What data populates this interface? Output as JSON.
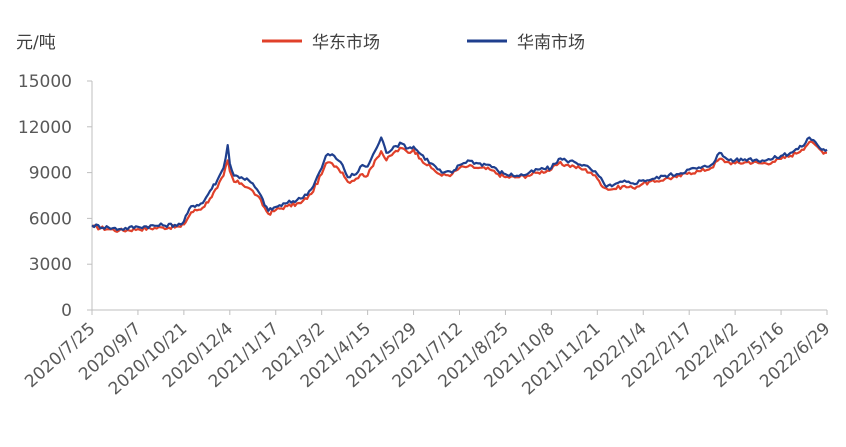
{
  "chart_data": {
    "type": "line",
    "unit_label": "元/吨",
    "ylim": [
      0,
      15000
    ],
    "yticks": [
      0,
      3000,
      6000,
      9000,
      12000,
      15000
    ],
    "x_start": "2020-07-25",
    "x_end": "2022-06-29",
    "xticks": [
      "2020/7/25",
      "2020/9/7",
      "2020/10/21",
      "2020/12/4",
      "2021/1/17",
      "2021/3/2",
      "2021/4/15",
      "2021/5/29",
      "2021/7/12",
      "2021/8/25",
      "2021/10/8",
      "2021/11/21",
      "2022/1/4",
      "2022/2/17",
      "2022/4/2",
      "2022/5/16",
      "2022/6/29"
    ],
    "legend_position": "top",
    "grid": false,
    "series": [
      {
        "name": "华东市场",
        "color": "#e0402a",
        "points": [
          [
            "2020-07-25",
            5450
          ],
          [
            "2020-08-10",
            5300
          ],
          [
            "2020-08-20",
            5200
          ],
          [
            "2020-09-07",
            5300
          ],
          [
            "2020-10-01",
            5400
          ],
          [
            "2020-10-18",
            5450
          ],
          [
            "2020-10-21",
            5600
          ],
          [
            "2020-10-28",
            6400
          ],
          [
            "2020-11-08",
            6700
          ],
          [
            "2020-11-15",
            7300
          ],
          [
            "2020-11-22",
            8000
          ],
          [
            "2020-11-28",
            8800
          ],
          [
            "2020-12-02",
            9800
          ],
          [
            "2020-12-04",
            9100
          ],
          [
            "2020-12-08",
            8400
          ],
          [
            "2020-12-15",
            8300
          ],
          [
            "2020-12-22",
            8000
          ],
          [
            "2020-12-30",
            7500
          ],
          [
            "2021-01-10",
            6300
          ],
          [
            "2021-01-17",
            6550
          ],
          [
            "2021-01-28",
            6800
          ],
          [
            "2021-02-10",
            7000
          ],
          [
            "2021-02-20",
            7600
          ],
          [
            "2021-03-02",
            8900
          ],
          [
            "2021-03-06",
            9600
          ],
          [
            "2021-03-12",
            9600
          ],
          [
            "2021-03-16",
            9400
          ],
          [
            "2021-03-22",
            9000
          ],
          [
            "2021-03-27",
            8400
          ],
          [
            "2021-04-04",
            8600
          ],
          [
            "2021-04-10",
            8900
          ],
          [
            "2021-04-15",
            8800
          ],
          [
            "2021-04-22",
            9800
          ],
          [
            "2021-04-28",
            10400
          ],
          [
            "2021-05-03",
            9800
          ],
          [
            "2021-05-10",
            10300
          ],
          [
            "2021-05-18",
            10600
          ],
          [
            "2021-05-24",
            10300
          ],
          [
            "2021-05-29",
            10500
          ],
          [
            "2021-06-05",
            9900
          ],
          [
            "2021-06-15",
            9300
          ],
          [
            "2021-06-25",
            8800
          ],
          [
            "2021-07-05",
            8900
          ],
          [
            "2021-07-12",
            9300
          ],
          [
            "2021-07-20",
            9400
          ],
          [
            "2021-07-30",
            9300
          ],
          [
            "2021-08-10",
            9200
          ],
          [
            "2021-08-18",
            8900
          ],
          [
            "2021-08-25",
            8700
          ],
          [
            "2021-09-05",
            8700
          ],
          [
            "2021-09-15",
            8800
          ],
          [
            "2021-09-25",
            9000
          ],
          [
            "2021-10-08",
            9200
          ],
          [
            "2021-10-15",
            9600
          ],
          [
            "2021-10-22",
            9500
          ],
          [
            "2021-10-30",
            9400
          ],
          [
            "2021-11-08",
            9200
          ],
          [
            "2021-11-15",
            9000
          ],
          [
            "2021-11-21",
            8600
          ],
          [
            "2021-11-28",
            8000
          ],
          [
            "2021-12-05",
            7900
          ],
          [
            "2021-12-15",
            8100
          ],
          [
            "2021-12-25",
            8000
          ],
          [
            "2022-01-04",
            8300
          ],
          [
            "2022-01-15",
            8400
          ],
          [
            "2022-01-25",
            8600
          ],
          [
            "2022-02-05",
            8700
          ],
          [
            "2022-02-17",
            9000
          ],
          [
            "2022-02-28",
            9100
          ],
          [
            "2022-03-10",
            9300
          ],
          [
            "2022-03-18",
            9900
          ],
          [
            "2022-03-25",
            9700
          ],
          [
            "2022-04-02",
            9600
          ],
          [
            "2022-04-15",
            9700
          ],
          [
            "2022-04-28",
            9600
          ],
          [
            "2022-05-08",
            9700
          ],
          [
            "2022-05-16",
            9900
          ],
          [
            "2022-05-25",
            10100
          ],
          [
            "2022-06-05",
            10500
          ],
          [
            "2022-06-12",
            11000
          ],
          [
            "2022-06-18",
            10800
          ],
          [
            "2022-06-24",
            10400
          ],
          [
            "2022-06-29",
            10300
          ]
        ]
      },
      {
        "name": "华南市场",
        "color": "#1f3f8e",
        "points": [
          [
            "2020-07-25",
            5550
          ],
          [
            "2020-08-10",
            5400
          ],
          [
            "2020-08-20",
            5300
          ],
          [
            "2020-09-07",
            5450
          ],
          [
            "2020-10-01",
            5550
          ],
          [
            "2020-10-18",
            5600
          ],
          [
            "2020-10-21",
            5800
          ],
          [
            "2020-10-28",
            6800
          ],
          [
            "2020-11-08",
            7000
          ],
          [
            "2020-11-15",
            7800
          ],
          [
            "2020-11-22",
            8500
          ],
          [
            "2020-11-28",
            9300
          ],
          [
            "2020-12-02",
            10800
          ],
          [
            "2020-12-04",
            9600
          ],
          [
            "2020-12-08",
            8800
          ],
          [
            "2020-12-15",
            8700
          ],
          [
            "2020-12-22",
            8500
          ],
          [
            "2020-12-30",
            7900
          ],
          [
            "2021-01-10",
            6500
          ],
          [
            "2021-01-17",
            6750
          ],
          [
            "2021-01-28",
            7000
          ],
          [
            "2021-02-10",
            7300
          ],
          [
            "2021-02-20",
            7900
          ],
          [
            "2021-03-02",
            9300
          ],
          [
            "2021-03-06",
            10100
          ],
          [
            "2021-03-12",
            10200
          ],
          [
            "2021-03-16",
            9900
          ],
          [
            "2021-03-22",
            9500
          ],
          [
            "2021-03-27",
            8700
          ],
          [
            "2021-04-04",
            8900
          ],
          [
            "2021-04-10",
            9500
          ],
          [
            "2021-04-15",
            9400
          ],
          [
            "2021-04-22",
            10400
          ],
          [
            "2021-04-28",
            11300
          ],
          [
            "2021-05-03",
            10300
          ],
          [
            "2021-05-10",
            10700
          ],
          [
            "2021-05-18",
            10900
          ],
          [
            "2021-05-24",
            10600
          ],
          [
            "2021-05-29",
            10700
          ],
          [
            "2021-06-05",
            10200
          ],
          [
            "2021-06-15",
            9600
          ],
          [
            "2021-06-25",
            9000
          ],
          [
            "2021-07-05",
            9000
          ],
          [
            "2021-07-12",
            9500
          ],
          [
            "2021-07-20",
            9800
          ],
          [
            "2021-07-30",
            9600
          ],
          [
            "2021-08-10",
            9500
          ],
          [
            "2021-08-18",
            9100
          ],
          [
            "2021-08-25",
            8900
          ],
          [
            "2021-09-05",
            8800
          ],
          [
            "2021-09-15",
            8900
          ],
          [
            "2021-09-25",
            9200
          ],
          [
            "2021-10-08",
            9300
          ],
          [
            "2021-10-15",
            9900
          ],
          [
            "2021-10-22",
            9800
          ],
          [
            "2021-10-30",
            9700
          ],
          [
            "2021-11-08",
            9500
          ],
          [
            "2021-11-15",
            9200
          ],
          [
            "2021-11-21",
            8900
          ],
          [
            "2021-11-28",
            8200
          ],
          [
            "2021-12-05",
            8100
          ],
          [
            "2021-12-15",
            8400
          ],
          [
            "2021-12-25",
            8300
          ],
          [
            "2022-01-04",
            8500
          ],
          [
            "2022-01-15",
            8600
          ],
          [
            "2022-01-25",
            8800
          ],
          [
            "2022-02-05",
            8900
          ],
          [
            "2022-02-17",
            9200
          ],
          [
            "2022-02-28",
            9300
          ],
          [
            "2022-03-10",
            9500
          ],
          [
            "2022-03-18",
            10300
          ],
          [
            "2022-03-25",
            9900
          ],
          [
            "2022-04-02",
            9800
          ],
          [
            "2022-04-15",
            9900
          ],
          [
            "2022-04-28",
            9800
          ],
          [
            "2022-05-08",
            9900
          ],
          [
            "2022-05-16",
            10100
          ],
          [
            "2022-05-25",
            10300
          ],
          [
            "2022-06-05",
            10700
          ],
          [
            "2022-06-12",
            11300
          ],
          [
            "2022-06-18",
            11000
          ],
          [
            "2022-06-24",
            10500
          ],
          [
            "2022-06-29",
            10500
          ]
        ]
      }
    ]
  }
}
